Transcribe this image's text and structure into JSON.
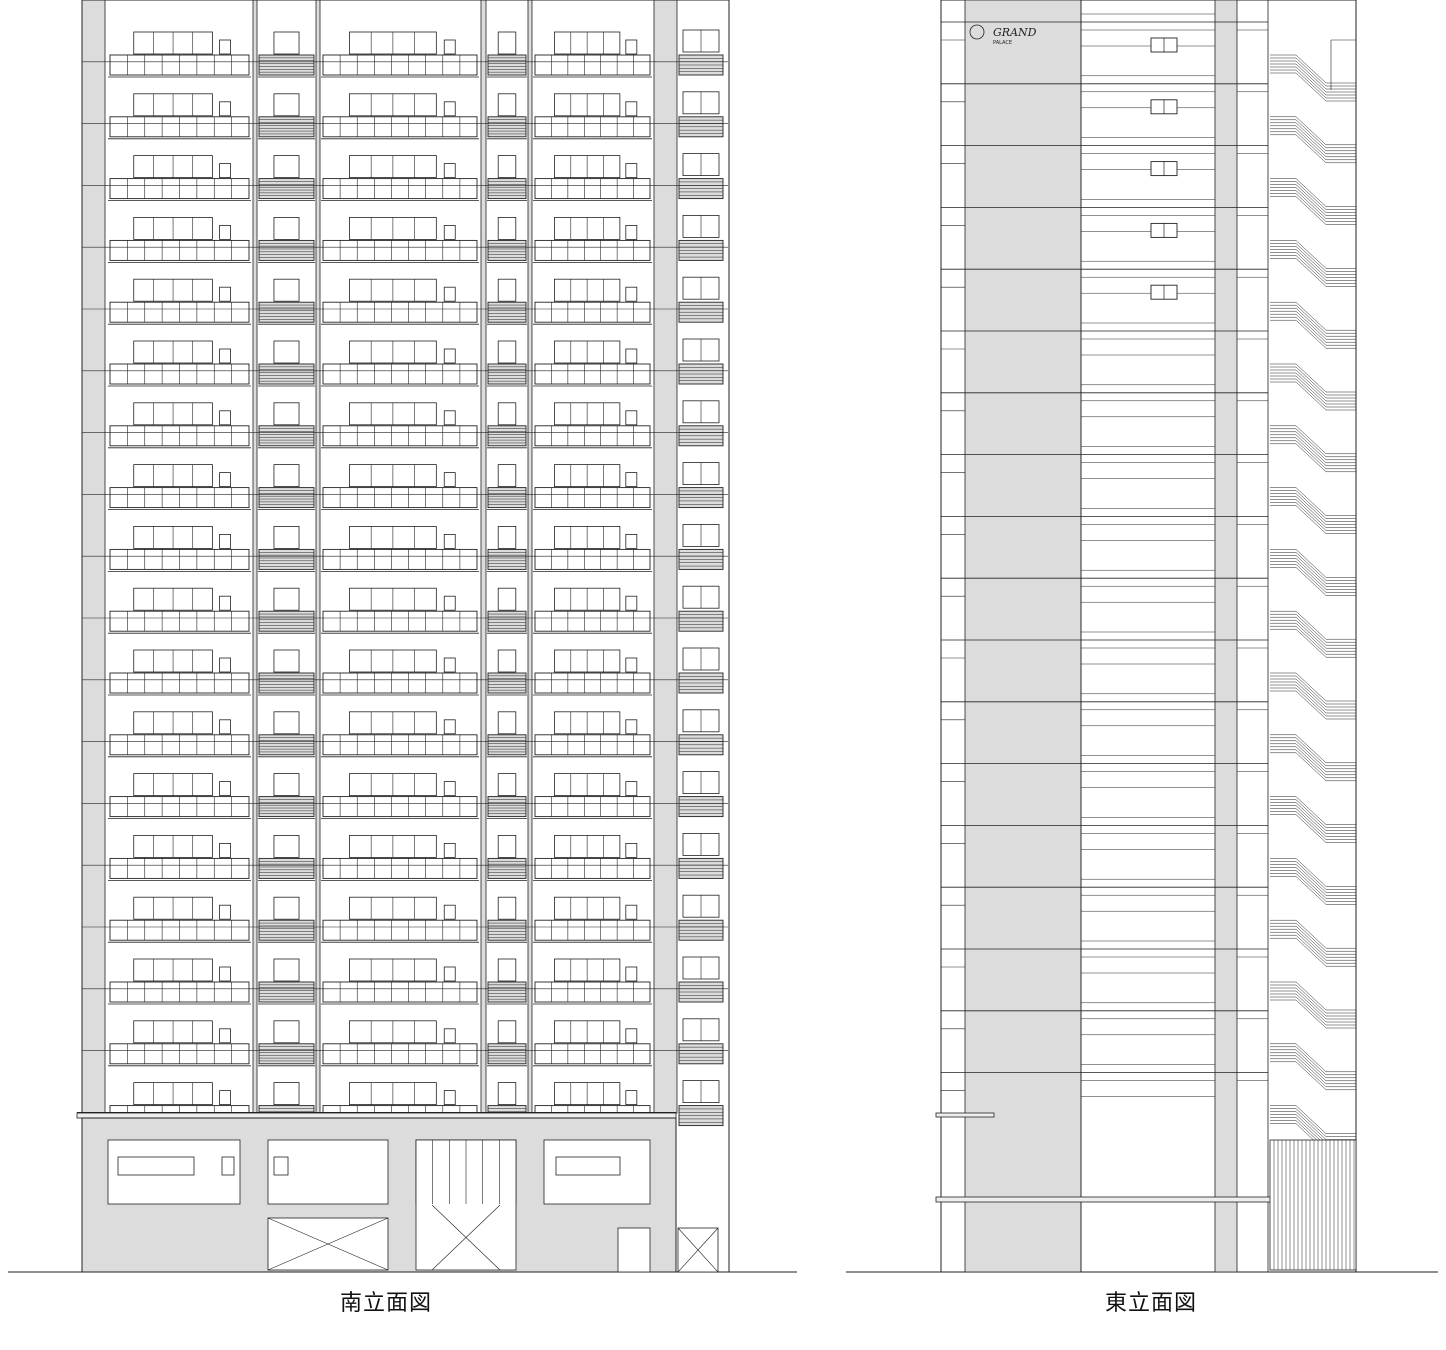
{
  "elevations": [
    {
      "id": "south",
      "caption": "南立面図",
      "floor_count": 18
    },
    {
      "id": "east",
      "caption": "東立面図",
      "floor_count": 18
    }
  ],
  "logo": {
    "line1": "GRAND",
    "line2": "PALACE"
  },
  "colors": {
    "line": "#222222",
    "wall": "#dcdcdc",
    "glass": "#ffffff",
    "background": "#ffffff"
  }
}
